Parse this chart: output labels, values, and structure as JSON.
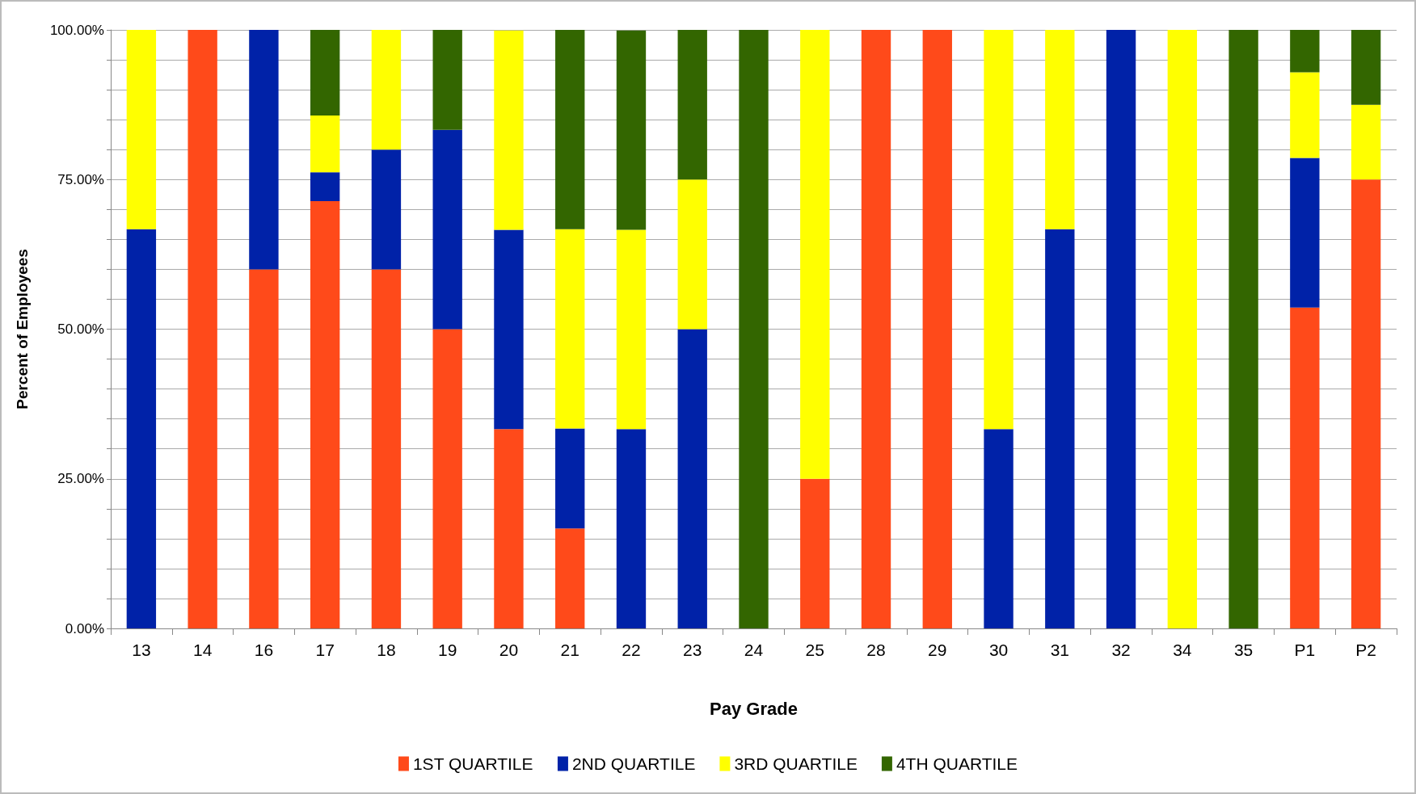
{
  "chart_data": {
    "type": "bar",
    "stacked": true,
    "xlabel": "Pay Grade",
    "ylabel": "Percent of Employees",
    "categories": [
      "13",
      "14",
      "16",
      "17",
      "18",
      "19",
      "20",
      "21",
      "22",
      "23",
      "24",
      "25",
      "28",
      "29",
      "30",
      "31",
      "32",
      "34",
      "35",
      "P1",
      "P2"
    ],
    "series": [
      {
        "name": "1ST QUARTILE",
        "color": "#ff4a1a",
        "values": [
          0,
          100,
          60,
          71.4,
          60,
          50,
          33.3,
          16.7,
          0,
          0,
          0,
          25,
          100,
          100,
          0,
          0,
          0,
          0,
          0,
          53.6,
          75
        ]
      },
      {
        "name": "2ND QUARTILE",
        "color": "#0022a8",
        "values": [
          66.7,
          0,
          40,
          4.8,
          20,
          33.3,
          33.3,
          16.7,
          33.3,
          50,
          0,
          0,
          0,
          0,
          33.3,
          66.7,
          100,
          0,
          0,
          25,
          0
        ]
      },
      {
        "name": "3RD QUARTILE",
        "color": "#ffff00",
        "values": [
          33.3,
          0,
          0,
          9.5,
          20,
          0,
          33.3,
          33.3,
          33.3,
          25,
          0,
          75,
          0,
          0,
          66.7,
          33.3,
          0,
          100,
          0,
          14.3,
          12.5
        ]
      },
      {
        "name": "4TH QUARTILE",
        "color": "#336600",
        "values": [
          0,
          0,
          0,
          14.3,
          0,
          16.7,
          0,
          33.3,
          33.3,
          25,
          100,
          0,
          0,
          0,
          0,
          0,
          0,
          0,
          100,
          7.1,
          12.5
        ]
      }
    ],
    "ylim": [
      0,
      100
    ],
    "yticks": [
      {
        "value": 0,
        "label": "0.00%"
      },
      {
        "value": 5,
        "label": null
      },
      {
        "value": 10,
        "label": null
      },
      {
        "value": 15,
        "label": null
      },
      {
        "value": 20,
        "label": null
      },
      {
        "value": 25,
        "label": "25.00%"
      },
      {
        "value": 30,
        "label": null
      },
      {
        "value": 35,
        "label": null
      },
      {
        "value": 40,
        "label": null
      },
      {
        "value": 45,
        "label": null
      },
      {
        "value": 50,
        "label": "50.00%"
      },
      {
        "value": 55,
        "label": null
      },
      {
        "value": 60,
        "label": null
      },
      {
        "value": 65,
        "label": null
      },
      {
        "value": 70,
        "label": null
      },
      {
        "value": 75,
        "label": "75.00%"
      },
      {
        "value": 80,
        "label": null
      },
      {
        "value": 85,
        "label": null
      },
      {
        "value": 90,
        "label": null
      },
      {
        "value": 95,
        "label": null
      },
      {
        "value": 100,
        "label": "100.00%"
      }
    ],
    "grid": "y",
    "legend": "bottom"
  }
}
